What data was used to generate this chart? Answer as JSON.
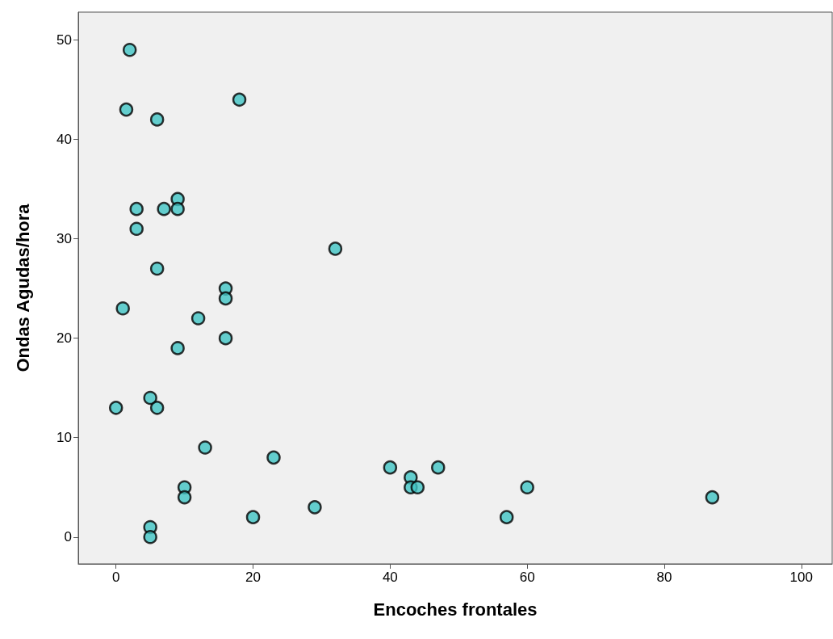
{
  "chart_data": {
    "type": "scatter",
    "xlabel": "Encoches frontales",
    "ylabel": "Ondas Agudas/hora",
    "x": [
      2,
      1.5,
      6,
      18,
      9,
      9,
      7,
      3,
      3,
      32,
      6,
      16,
      16,
      1,
      12,
      16,
      9,
      0,
      5,
      6,
      13,
      23,
      40,
      47,
      43,
      43,
      44,
      60,
      10,
      10,
      87,
      29,
      20,
      57,
      5,
      5
    ],
    "series": [
      {
        "color": "#40c4c4",
        "values": [
          49,
          43,
          42,
          44,
          34,
          33,
          33,
          33,
          31,
          29,
          27,
          25,
          24,
          23,
          22,
          20,
          19,
          13,
          14,
          13,
          9,
          8,
          7,
          7,
          6,
          5,
          5,
          5,
          5,
          4,
          4,
          3,
          2,
          2,
          1,
          0
        ]
      }
    ],
    "xlim": [
      -5.5,
      104.5
    ],
    "xticks": [
      0,
      20,
      40,
      60,
      80,
      100
    ],
    "ylim": [
      -2.7,
      52.8
    ],
    "yticks": [
      0,
      10,
      20,
      30,
      40,
      50
    ],
    "grid": false,
    "marker": "circle"
  }
}
